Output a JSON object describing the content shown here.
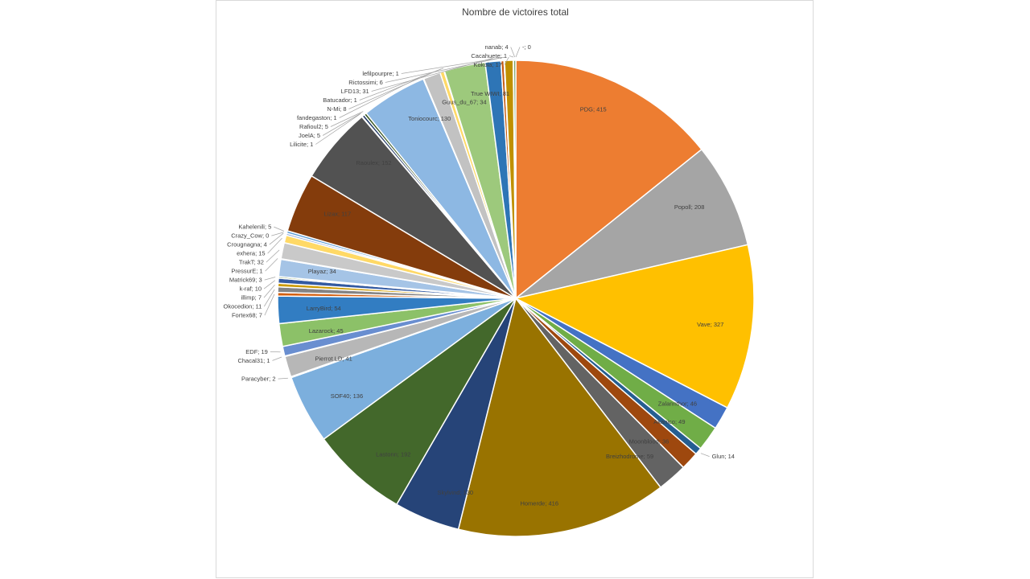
{
  "chart_data": {
    "type": "pie",
    "title": "Nombre de victoires total",
    "slices": [
      {
        "name": "PDG",
        "value": 415,
        "label": "PDG; 415",
        "color": "#ed7d31"
      },
      {
        "name": "Popoll",
        "value": 208,
        "label": "Popoll; 208",
        "color": "#a5a5a5"
      },
      {
        "name": "Vave",
        "value": 327,
        "label": "Vave; 327",
        "color": "#ffc000"
      },
      {
        "name": "Zalannthor",
        "value": 46,
        "label": "Zalannthor; 46",
        "color": "#4472c4"
      },
      {
        "name": "Akanico",
        "value": 49,
        "label": "Akanico; 49",
        "color": "#70ad47"
      },
      {
        "name": "Glun",
        "value": 14,
        "label": "Glun; 14",
        "color": "#255e91"
      },
      {
        "name": "Moonblood",
        "value": 36,
        "label": "Moonblood; 36",
        "color": "#9e480e"
      },
      {
        "name": "Breizhodrome",
        "value": 59,
        "label": "Breizhodrome; 59",
        "color": "#636363"
      },
      {
        "name": "Homerde",
        "value": 416,
        "label": "Homerde; 416",
        "color": "#997300"
      },
      {
        "name": "Skylvind",
        "value": 130,
        "label": "Skylvind; 130",
        "color": "#264478"
      },
      {
        "name": "Lastonn",
        "value": 192,
        "label": "Lastonn; 192",
        "color": "#43682b"
      },
      {
        "name": "SOF40",
        "value": 136,
        "label": "SOF40; 136",
        "color": "#7cafdd"
      },
      {
        "name": "Paracyber",
        "value": 2,
        "label": "Paracyber; 2",
        "color": "#f1975a"
      },
      {
        "name": "Pierrot LD",
        "value": 41,
        "label": "Pierrot LD; 41",
        "color": "#b7b7b7"
      },
      {
        "name": "Chacal31",
        "value": 1,
        "label": "Chacal31; 1",
        "color": "#ffcd33"
      },
      {
        "name": "EDF",
        "value": 19,
        "label": "EDF; 19",
        "color": "#698ed0"
      },
      {
        "name": "Lazarock",
        "value": 45,
        "label": "Lazarock; 45",
        "color": "#8cc168"
      },
      {
        "name": "LarryBird",
        "value": 54,
        "label": "LarryBird; 54",
        "color": "#327dc2"
      },
      {
        "name": "Fortex68",
        "value": 7,
        "label": "Fortex68; 7",
        "color": "#d26012"
      },
      {
        "name": "Okocedion",
        "value": 11,
        "label": "Okocedion; 11",
        "color": "#848484"
      },
      {
        "name": "illimp",
        "value": 7,
        "label": "illimp; 7",
        "color": "#cc9a00"
      },
      {
        "name": "k-raf",
        "value": 10,
        "label": "k-raf; 10",
        "color": "#335aa1"
      },
      {
        "name": "Matrick69",
        "value": 3,
        "label": "Matrick69; 3",
        "color": "#5a8a39"
      },
      {
        "name": "Playaz",
        "value": 34,
        "label": "Playaz; 34",
        "color": "#a5c4e6"
      },
      {
        "name": "PressurE",
        "value": 1,
        "label": "PressurE; 1",
        "color": "#f4b183"
      },
      {
        "name": "TrakT",
        "value": 32,
        "label": "TrakT; 32",
        "color": "#c9c9c9"
      },
      {
        "name": "exhera",
        "value": 15,
        "label": "exhera; 15",
        "color": "#ffd966"
      },
      {
        "name": "Crougnagna",
        "value": 4,
        "label": "Crougnagna; 4",
        "color": "#8faadc"
      },
      {
        "name": "Crazy_Cow",
        "value": 0,
        "label": "Crazy_Cow; 0",
        "color": "#a9d18e"
      },
      {
        "name": "Kahelenili",
        "value": 5,
        "label": "Kahelenili; 5",
        "color": "#5b9bd5"
      },
      {
        "name": "Lizax",
        "value": 117,
        "label": "Lizax; 117",
        "color": "#843c0c"
      },
      {
        "name": "Raoulex",
        "value": 152,
        "label": "Raoulex; 152",
        "color": "#525252"
      },
      {
        "name": "Lilicite",
        "value": 1,
        "label": "Lilicite; 1",
        "color": "#7f6000"
      },
      {
        "name": "JoelA",
        "value": 5,
        "label": "JoelA; 5",
        "color": "#203864"
      },
      {
        "name": "Rafioul2",
        "value": 5,
        "label": "Rafioul2; 5",
        "color": "#385723"
      },
      {
        "name": "Toniocourc",
        "value": 130,
        "label": "Toniocourc; 130",
        "color": "#8db8e3"
      },
      {
        "name": "fandegaston",
        "value": 1,
        "label": "fandegaston; 1",
        "color": "#f8cbad"
      },
      {
        "name": "Guus_du_67",
        "value": 34,
        "label": "Guus_du_67; 34",
        "color": "#c2c2c2"
      },
      {
        "name": "N-Mi",
        "value": 8,
        "label": "N-Mi; 8",
        "color": "#ffd966"
      },
      {
        "name": "Batucador",
        "value": 1,
        "label": "Batucador; 1",
        "color": "#8faadc"
      },
      {
        "name": "True WIWI",
        "value": 81,
        "label": "True WIWI; 81",
        "color": "#9dc97c"
      },
      {
        "name": "LFD13",
        "value": 31,
        "label": "LFD13; 31",
        "color": "#2e75b6"
      },
      {
        "name": "Rictossimi",
        "value": 6,
        "label": "Rictossimi; 6",
        "color": "#c55a11"
      },
      {
        "name": "lefilpourpre",
        "value": 1,
        "label": "lefilpourpre; 1",
        "color": "#7f7f7f"
      },
      {
        "name": "Kokola",
        "value": 17,
        "label": "Kokola; 17",
        "color": "#bf9000"
      },
      {
        "name": "Cacahuete",
        "value": 1,
        "label": "Cacahuete; 1",
        "color": "#2f5597"
      },
      {
        "name": "nanab",
        "value": 4,
        "label": "nanab; 4",
        "color": "#548235"
      },
      {
        "name": "-",
        "value": 0,
        "label": "-; 0",
        "color": "#9dc3e6"
      }
    ]
  }
}
